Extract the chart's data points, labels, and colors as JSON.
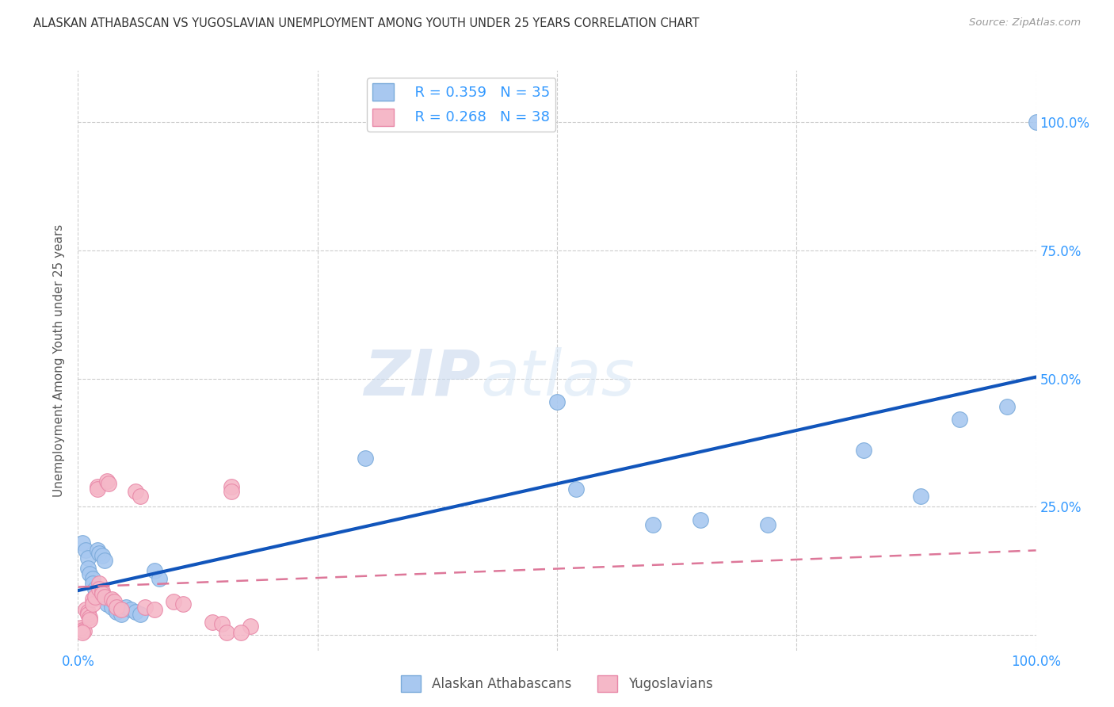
{
  "title": "ALASKAN ATHABASCAN VS YUGOSLAVIAN UNEMPLOYMENT AMONG YOUTH UNDER 25 YEARS CORRELATION CHART",
  "source": "Source: ZipAtlas.com",
  "ylabel": "Unemployment Among Youth under 25 years",
  "xlim": [
    0,
    1.0
  ],
  "ylim": [
    -0.03,
    1.1
  ],
  "background_color": "#ffffff",
  "watermark_zip": "ZIP",
  "watermark_atlas": "atlas",
  "legend_r1": "R = 0.359",
  "legend_n1": "N = 35",
  "legend_r2": "R = 0.268",
  "legend_n2": "N = 38",
  "alaskan_color": "#a8c8f0",
  "alaskan_edge": "#7aaada",
  "yugoslav_color": "#f5b8c8",
  "yugoslav_edge": "#e888a8",
  "trend_blue": "#1155bb",
  "trend_pink": "#dd7799",
  "alaskan_x": [
    0.005,
    0.008,
    0.01,
    0.01,
    0.012,
    0.015,
    0.015,
    0.018,
    0.02,
    0.022,
    0.025,
    0.028,
    0.03,
    0.03,
    0.035,
    0.04,
    0.04,
    0.045,
    0.05,
    0.055,
    0.06,
    0.065,
    0.08,
    0.085,
    0.3,
    0.5,
    0.52,
    0.6,
    0.65,
    0.72,
    0.82,
    0.88,
    0.92,
    0.97,
    1.0
  ],
  "alaskan_y": [
    0.18,
    0.165,
    0.15,
    0.13,
    0.12,
    0.11,
    0.1,
    0.09,
    0.165,
    0.16,
    0.155,
    0.145,
    0.07,
    0.06,
    0.055,
    0.05,
    0.045,
    0.04,
    0.055,
    0.05,
    0.045,
    0.04,
    0.125,
    0.11,
    0.345,
    0.455,
    0.285,
    0.215,
    0.225,
    0.215,
    0.36,
    0.27,
    0.42,
    0.445,
    1.0
  ],
  "yugoslav_x": [
    0.003,
    0.005,
    0.006,
    0.008,
    0.01,
    0.01,
    0.012,
    0.012,
    0.015,
    0.015,
    0.018,
    0.02,
    0.02,
    0.022,
    0.022,
    0.025,
    0.025,
    0.028,
    0.03,
    0.032,
    0.035,
    0.038,
    0.04,
    0.045,
    0.06,
    0.065,
    0.07,
    0.08,
    0.1,
    0.11,
    0.14,
    0.15,
    0.16,
    0.16,
    0.18,
    0.005,
    0.155,
    0.17
  ],
  "yugoslav_y": [
    0.015,
    0.01,
    0.008,
    0.05,
    0.045,
    0.04,
    0.035,
    0.03,
    0.07,
    0.06,
    0.075,
    0.29,
    0.285,
    0.1,
    0.09,
    0.085,
    0.08,
    0.075,
    0.3,
    0.295,
    0.07,
    0.065,
    0.055,
    0.05,
    0.28,
    0.27,
    0.055,
    0.05,
    0.065,
    0.06,
    0.025,
    0.022,
    0.29,
    0.28,
    0.018,
    0.005,
    0.005,
    0.005
  ],
  "ytick_vals": [
    0.0,
    0.25,
    0.5,
    0.75,
    1.0
  ],
  "ytick_labels_right": [
    "",
    "25.0%",
    "50.0%",
    "75.0%",
    "100.0%"
  ],
  "xtick_vals": [
    0.0,
    0.25,
    0.5,
    0.75,
    1.0
  ],
  "xtick_labels": [
    "0.0%",
    "",
    "",
    "",
    "100.0%"
  ]
}
